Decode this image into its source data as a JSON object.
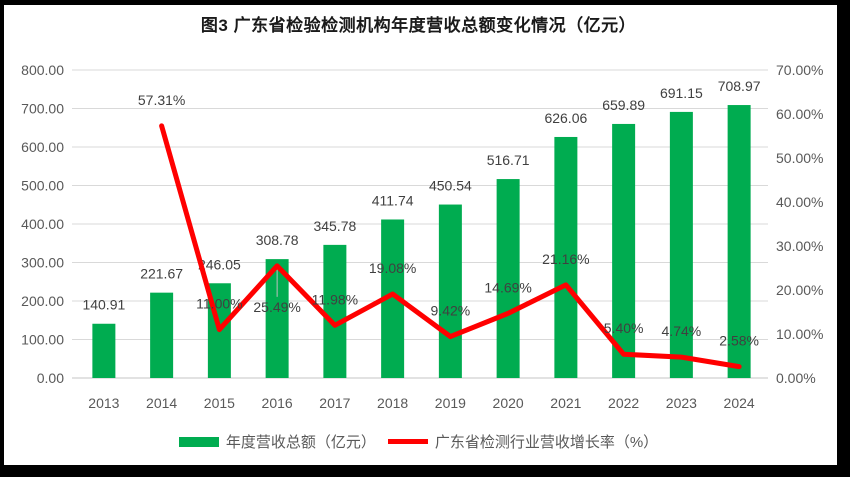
{
  "window": {
    "background": "#ffffff",
    "frame_color": "#000000"
  },
  "chart_data": {
    "type": "bar+line",
    "title": "图3 广东省检验检测机构年度营收总额变化情况（亿元）",
    "categories": [
      "2013",
      "2014",
      "2015",
      "2016",
      "2017",
      "2018",
      "2019",
      "2020",
      "2021",
      "2022",
      "2023",
      "2024"
    ],
    "series": [
      {
        "name": "年度营收总额（亿元）",
        "type": "bar",
        "axis": "left",
        "color": "#00AC50",
        "values": [
          140.91,
          221.67,
          246.05,
          308.78,
          345.78,
          411.74,
          450.54,
          516.71,
          626.06,
          659.89,
          691.15,
          708.97
        ],
        "data_labels": [
          "140.91",
          "221.67",
          "246.05",
          "308.78",
          "345.78",
          "411.74",
          "450.54",
          "516.71",
          "626.06",
          "659.89",
          "691.15",
          "708.97"
        ]
      },
      {
        "name": "广东省检测行业营收增长率（%）",
        "type": "line",
        "axis": "right",
        "color": "#FF0000",
        "values": [
          null,
          57.31,
          11.0,
          25.49,
          11.98,
          19.08,
          9.42,
          14.69,
          21.16,
          5.4,
          4.74,
          2.58
        ],
        "data_labels": [
          null,
          "57.31%",
          "11.00%",
          "25.49%",
          "11.98%",
          "19.08%",
          "9.42%",
          "14.69%",
          "21.16%",
          "5.40%",
          "4.74%",
          "2.58%"
        ],
        "labels_below": [
          "2016"
        ]
      }
    ],
    "left_axis": {
      "min": 0,
      "max": 800,
      "step": 100,
      "tick_labels": [
        "0.00",
        "100.00",
        "200.00",
        "300.00",
        "400.00",
        "500.00",
        "600.00",
        "700.00",
        "800.00"
      ]
    },
    "right_axis": {
      "min": 0,
      "max": 70,
      "step": 10,
      "tick_labels": [
        "0.00%",
        "10.00%",
        "20.00%",
        "30.00%",
        "40.00%",
        "50.00%",
        "60.00%",
        "70.00%"
      ]
    },
    "grid": true,
    "gridline_color": "#D9D9D9",
    "baseline_color": "#C4C4C4",
    "legend_position": "bottom"
  }
}
